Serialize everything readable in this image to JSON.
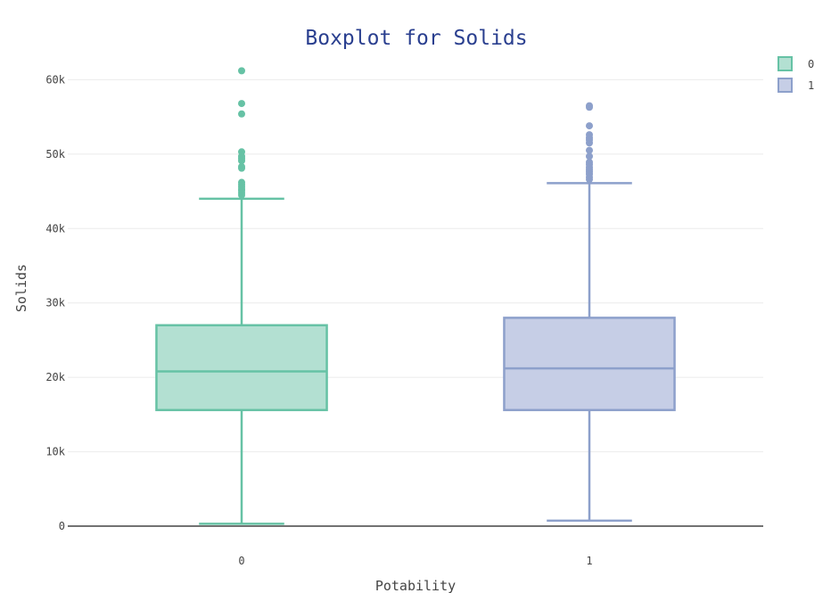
{
  "chart_data": {
    "type": "box",
    "title": "Boxplot for Solids",
    "xlabel": "Potability",
    "ylabel": "Solids",
    "ylim": [
      0,
      64000
    ],
    "grid": true,
    "legend_position": "top-right",
    "yticks": [
      {
        "value": 0,
        "label": "0"
      },
      {
        "value": 10000,
        "label": "10k"
      },
      {
        "value": 20000,
        "label": "20k"
      },
      {
        "value": 30000,
        "label": "30k"
      },
      {
        "value": 40000,
        "label": "40k"
      },
      {
        "value": 50000,
        "label": "50k"
      },
      {
        "value": 60000,
        "label": "60k"
      }
    ],
    "categories": [
      "0",
      "1"
    ],
    "series": [
      {
        "name": "0",
        "category": "0",
        "color": "#66c2a5",
        "fill": "#b3e0d2",
        "min": 320,
        "q1": 15600,
        "median": 20800,
        "q3": 27000,
        "max": 44000,
        "outliers": [
          44500,
          44800,
          45100,
          45300,
          45600,
          45900,
          46200,
          48100,
          48300,
          49100,
          49400,
          49700,
          50300,
          55400,
          56800,
          61200
        ]
      },
      {
        "name": "1",
        "category": "1",
        "color": "#8da0cb",
        "fill": "#c6cee6",
        "min": 730,
        "q1": 15600,
        "median": 21200,
        "q3": 28000,
        "max": 46100,
        "outliers": [
          46600,
          46900,
          47300,
          47600,
          47900,
          48200,
          48600,
          48900,
          49700,
          50500,
          51500,
          51900,
          52200,
          52600,
          53800,
          56300,
          56500
        ]
      }
    ]
  }
}
